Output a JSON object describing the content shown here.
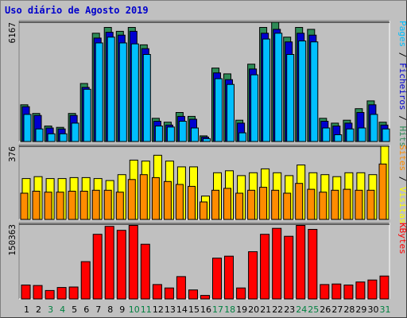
{
  "title": "Uso diário de Agosto 2019",
  "colors": {
    "hits": "#2e8b57",
    "files": "#0000d0",
    "pages": "#00bfff",
    "visits": "#ffff00",
    "sites": "#ff8c00",
    "kbytes": "#ff0000",
    "weekend_label": "#008040",
    "weekday_label": "#000000"
  },
  "chart_data": [
    {
      "type": "bar",
      "title": "",
      "max_label": "6167",
      "ylim": [
        0,
        6167
      ],
      "side_labels": [
        {
          "text": "Pages",
          "color": "#00bfff"
        },
        {
          "text": " / ",
          "color": "#000000"
        },
        {
          "text": "Ficheiros",
          "color": "#0000d0"
        },
        {
          "text": " / ",
          "color": "#000000"
        },
        {
          "text": "Hits",
          "color": "#2e8b57"
        }
      ],
      "categories": [
        "1",
        "2",
        "3",
        "4",
        "5",
        "6",
        "7",
        "8",
        "9",
        "10",
        "11",
        "12",
        "13",
        "14",
        "15",
        "16",
        "17",
        "18",
        "19",
        "20",
        "21",
        "22",
        "23",
        "24",
        "25",
        "26",
        "27",
        "28",
        "29",
        "30",
        "31"
      ],
      "series": [
        {
          "name": "Hits",
          "values": [
            1900,
            1450,
            800,
            730,
            1450,
            3000,
            5600,
            5900,
            5700,
            5900,
            5000,
            1200,
            1000,
            1500,
            1300,
            290,
            3800,
            3500,
            1100,
            4000,
            5900,
            6167,
            5400,
            5900,
            5800,
            1200,
            950,
            1100,
            1700,
            2100,
            1000
          ]
        },
        {
          "name": "Ficheiros",
          "values": [
            1800,
            1350,
            700,
            650,
            1350,
            2800,
            5350,
            5650,
            5500,
            5700,
            4800,
            1050,
            850,
            1300,
            1150,
            230,
            3550,
            3200,
            950,
            3750,
            5600,
            5800,
            5150,
            5600,
            5500,
            1050,
            800,
            950,
            1500,
            1900,
            850
          ]
        },
        {
          "name": "Pages",
          "values": [
            1400,
            650,
            400,
            400,
            950,
            2700,
            5100,
            5400,
            5100,
            5050,
            4500,
            800,
            750,
            1050,
            700,
            150,
            3250,
            2950,
            450,
            3450,
            5300,
            5600,
            4500,
            5200,
            5150,
            700,
            350,
            650,
            700,
            1400,
            650
          ]
        }
      ]
    },
    {
      "type": "bar",
      "title": "",
      "max_label": "376",
      "ylim": [
        0,
        376
      ],
      "side_labels": [
        {
          "text": "Sites",
          "color": "#ff8c00"
        },
        {
          "text": " / ",
          "color": "#000000"
        },
        {
          "text": "Visitas",
          "color": "#ffff00"
        }
      ],
      "categories": [
        "1",
        "2",
        "3",
        "4",
        "5",
        "6",
        "7",
        "8",
        "9",
        "10",
        "11",
        "12",
        "13",
        "14",
        "15",
        "16",
        "17",
        "18",
        "19",
        "20",
        "21",
        "22",
        "23",
        "24",
        "25",
        "26",
        "27",
        "28",
        "29",
        "30",
        "31"
      ],
      "series": [
        {
          "name": "Visitas",
          "values": [
            210,
            220,
            210,
            210,
            215,
            215,
            210,
            200,
            230,
            305,
            300,
            330,
            300,
            270,
            270,
            120,
            240,
            250,
            225,
            240,
            260,
            240,
            225,
            280,
            240,
            230,
            220,
            240,
            240,
            230,
            376
          ]
        },
        {
          "name": "Sites",
          "values": [
            135,
            145,
            140,
            140,
            145,
            145,
            150,
            150,
            140,
            205,
            230,
            215,
            195,
            180,
            170,
            90,
            150,
            160,
            135,
            150,
            165,
            150,
            135,
            185,
            155,
            140,
            150,
            155,
            150,
            150,
            285
          ]
        }
      ]
    },
    {
      "type": "bar",
      "title": "",
      "max_label": "150363",
      "ylim": [
        0,
        150363
      ],
      "side_labels": [
        {
          "text": "KBytes",
          "color": "#ff0000"
        }
      ],
      "categories": [
        "1",
        "2",
        "3",
        "4",
        "5",
        "6",
        "7",
        "8",
        "9",
        "10",
        "11",
        "12",
        "13",
        "14",
        "15",
        "16",
        "17",
        "18",
        "19",
        "20",
        "21",
        "22",
        "23",
        "24",
        "25",
        "26",
        "27",
        "28",
        "29",
        "30",
        "31"
      ],
      "series": [
        {
          "name": "KBytes",
          "values": [
            28000,
            27000,
            17000,
            23000,
            24000,
            75000,
            130000,
            146000,
            138000,
            148000,
            110000,
            29000,
            22000,
            45000,
            18000,
            7000,
            82000,
            86000,
            22000,
            95000,
            130000,
            142000,
            126000,
            148000,
            140000,
            29000,
            30000,
            28000,
            34000,
            38000,
            46000
          ]
        }
      ]
    }
  ],
  "weekend_days": [
    "3",
    "4",
    "10",
    "11",
    "17",
    "18",
    "24",
    "25",
    "31"
  ]
}
